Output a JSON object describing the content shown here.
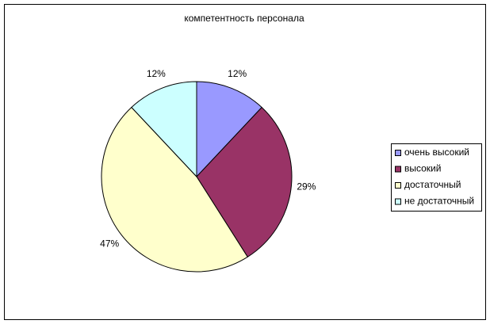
{
  "chart_data": {
    "type": "pie",
    "title": "компетентность персонала",
    "categories": [
      "очень высокий",
      "высокий",
      "достаточный",
      "не достаточный"
    ],
    "values": [
      12,
      29,
      47,
      12
    ],
    "value_labels": [
      "12%",
      "29%",
      "47%",
      "12%"
    ],
    "colors": [
      "#9999ff",
      "#993366",
      "#ffffcc",
      "#ccffff"
    ],
    "legend": "right"
  }
}
